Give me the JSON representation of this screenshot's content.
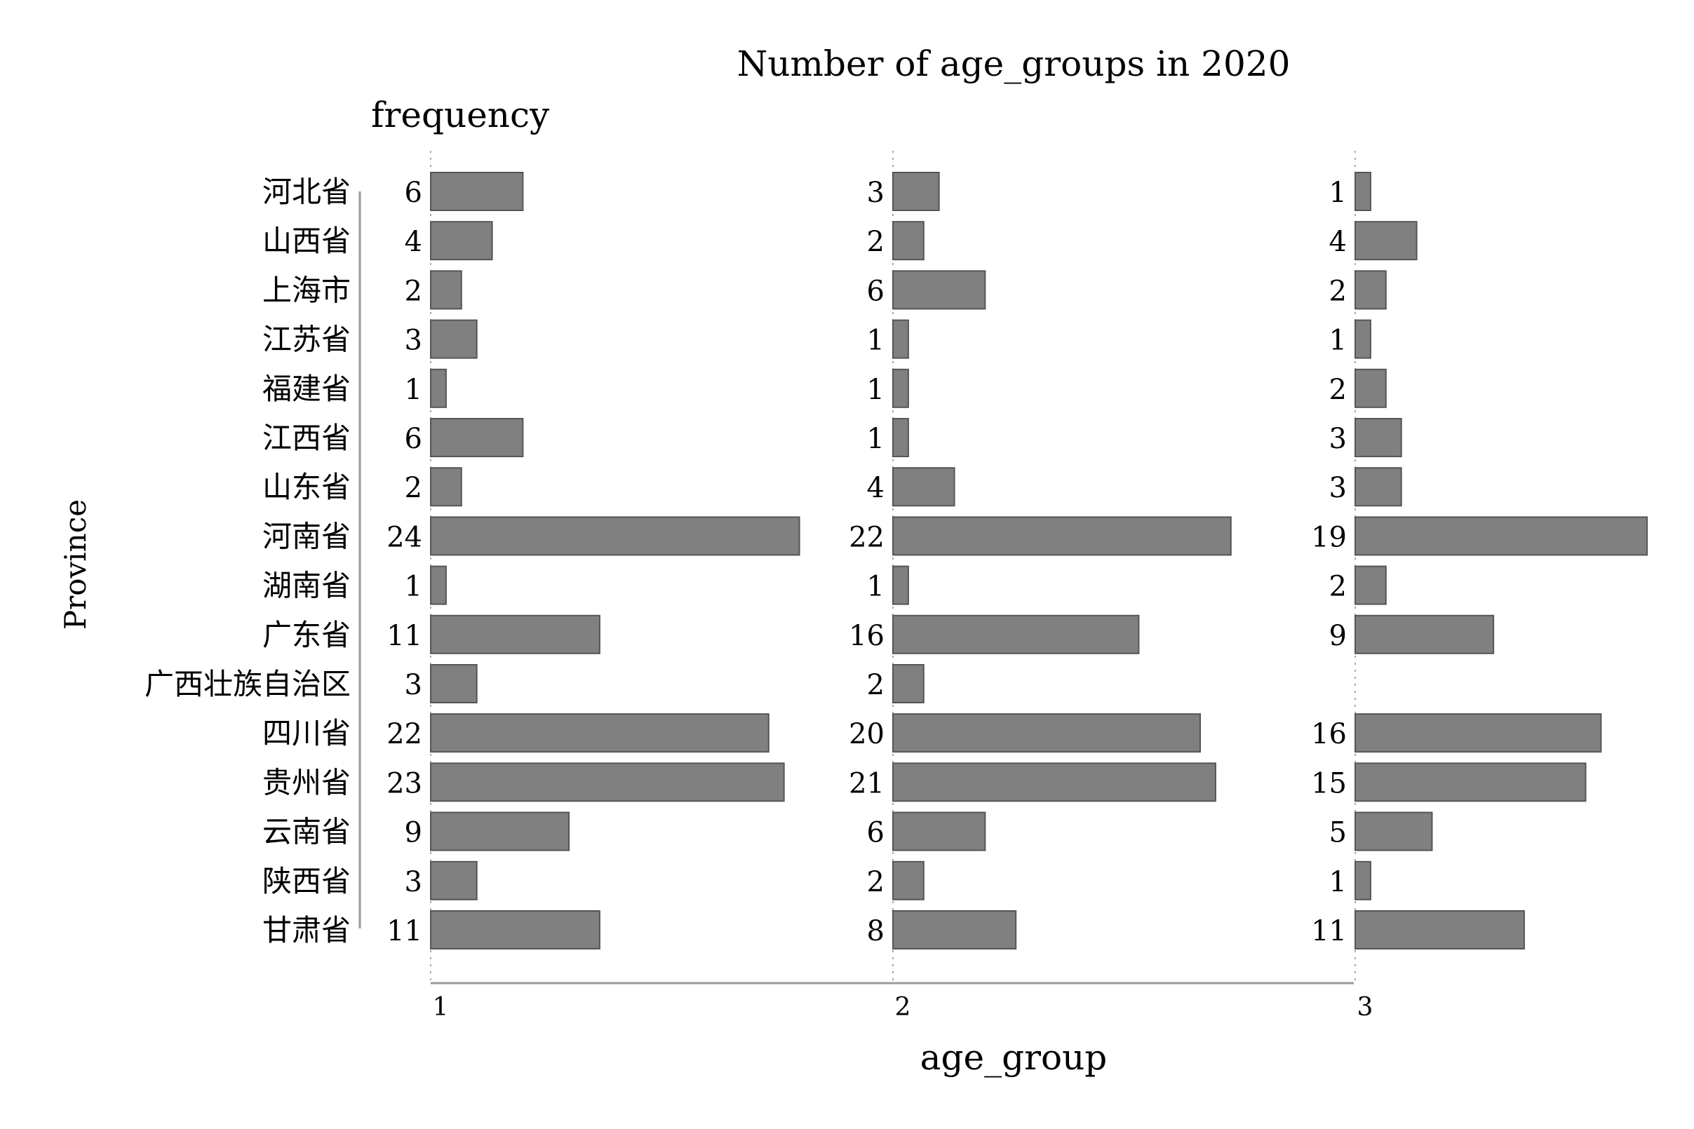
{
  "chart_data": {
    "type": "bar",
    "orientation": "horizontal",
    "layout": "small-multiples",
    "title": "Number of age_groups in 2020",
    "value_label": "frequency",
    "xlabel": "age_group",
    "ylabel": "Province",
    "categories": [
      "河北省",
      "山西省",
      "上海市",
      "江苏省",
      "福建省",
      "江西省",
      "山东省",
      "河南省",
      "湖南省",
      "广东省",
      "广西壮族自治区",
      "四川省",
      "贵州省",
      "云南省",
      "陕西省",
      "甘肃省"
    ],
    "panels": [
      {
        "label": "1",
        "values": [
          6,
          4,
          2,
          3,
          1,
          6,
          2,
          24,
          1,
          11,
          3,
          22,
          23,
          9,
          3,
          11
        ]
      },
      {
        "label": "2",
        "values": [
          3,
          2,
          6,
          1,
          1,
          1,
          4,
          22,
          1,
          16,
          2,
          20,
          21,
          6,
          2,
          8
        ]
      },
      {
        "label": "3",
        "values": [
          1,
          4,
          2,
          1,
          2,
          3,
          3,
          19,
          2,
          9,
          null,
          16,
          15,
          5,
          1,
          11
        ]
      }
    ],
    "bar_color": "#808080",
    "bar_stroke": "#555555",
    "data_labels": true,
    "grid": false
  }
}
